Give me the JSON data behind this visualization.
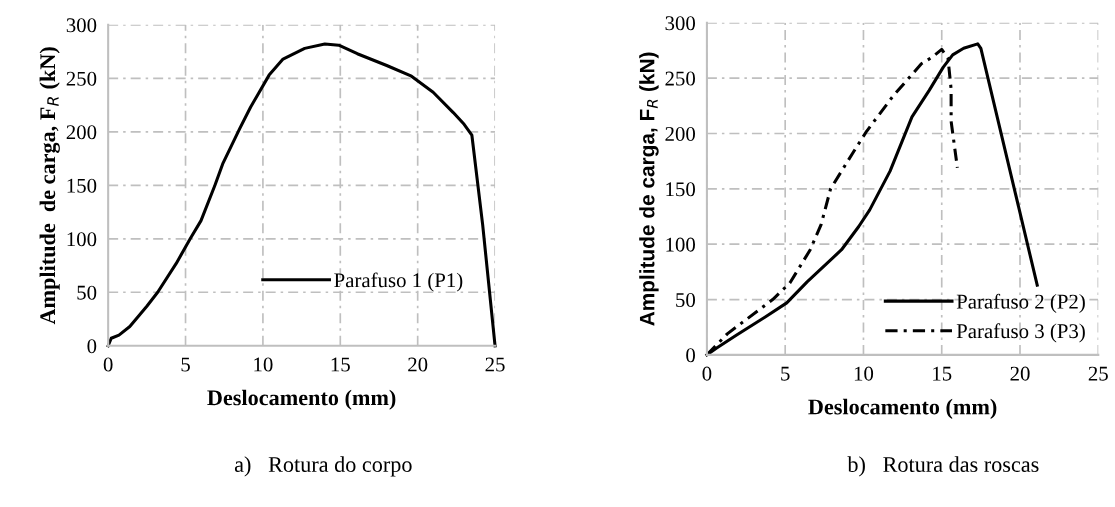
{
  "chart_data": [
    {
      "type": "line",
      "xlabel": "Deslocamento (mm)",
      "ylabel": "Amplitude  de carga, F$_{R}$ (kN)",
      "annotations": [
        "a)   Rotura do corpo"
      ],
      "xlim": [
        0,
        25
      ],
      "ylim": [
        0,
        300
      ],
      "xticks": [
        0,
        5,
        10,
        15,
        20,
        25
      ],
      "yticks": [
        0,
        50,
        100,
        150,
        200,
        250,
        300
      ],
      "grid": true,
      "legend": "lower right",
      "marker": "none",
      "series": [
        {
          "name": "Parafuso 1 (P1)",
          "color": "#000000",
          "line_style": "solid",
          "x": [
            0,
            0.2,
            0.7,
            1.4,
            2.5,
            3.2,
            4.4,
            5.3,
            6,
            6.9,
            7.4,
            8.5,
            9.2,
            10.4,
            11.3,
            12.7,
            14,
            14.9,
            16.1,
            18,
            19.6,
            21,
            22.3,
            23,
            23.5,
            24.2,
            25
          ],
          "values": [
            0,
            7,
            10,
            18,
            37,
            50,
            77,
            100,
            117,
            150,
            170,
            203,
            223,
            253,
            268,
            278,
            282,
            281,
            273,
            262,
            252,
            237,
            218,
            207,
            197,
            113,
            0
          ]
        }
      ]
    },
    {
      "type": "line",
      "xlabel": "Deslocamento (mm)",
      "ylabel": "Amplitude de carga, F$_{R}$ (kN)",
      "annotations": [
        "b)   Rotura das roscas"
      ],
      "xlim": [
        0,
        25
      ],
      "ylim": [
        0,
        300
      ],
      "xticks": [
        0,
        5,
        10,
        15,
        20,
        25
      ],
      "yticks": [
        0,
        50,
        100,
        150,
        200,
        250,
        300
      ],
      "grid": true,
      "legend": "lower right",
      "marker": "none",
      "series": [
        {
          "name": "Parafuso 2 (P2)",
          "color": "#000000",
          "line_style": "solid",
          "x": [
            0,
            0.6,
            1.9,
            3.7,
            5.1,
            6.4,
            8.6,
            9.7,
            10.4,
            11.7,
            13.1,
            14.2,
            15.1,
            15.7,
            16.4,
            17.3,
            17.5,
            21.1
          ],
          "values": [
            0,
            6,
            18,
            34,
            47,
            66,
            95,
            116,
            131,
            166,
            215,
            239,
            260,
            271,
            277,
            281,
            277,
            63
          ]
        },
        {
          "name": "Parafuso 3 (P3)",
          "color": "#000000",
          "line_style": "dashdot",
          "x": [
            0,
            1.3,
            4.2,
            5.3,
            6.6,
            7.3,
            7.9,
            9.3,
            10.2,
            11.9,
            13.7,
            14.4,
            15,
            15.4,
            15.6,
            15.6,
            16
          ],
          "values": [
            0,
            19,
            50,
            65,
            95,
            118,
            150,
            182,
            202,
            234,
            263,
            269,
            276,
            268,
            240,
            211,
            169
          ]
        }
      ]
    }
  ]
}
